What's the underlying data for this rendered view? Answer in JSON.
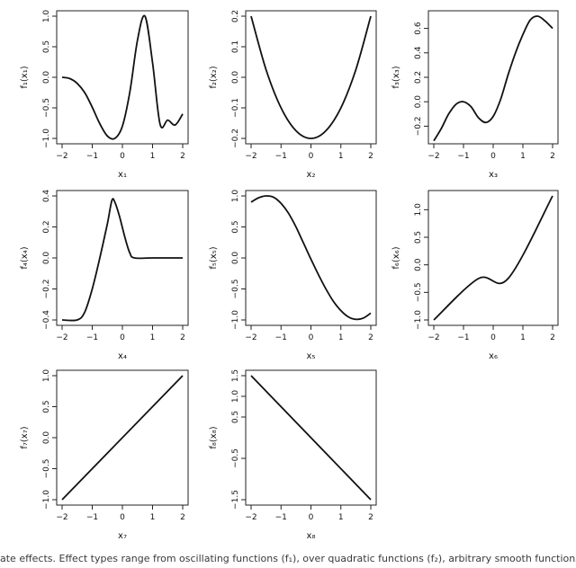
{
  "caption": "ate effects. Effect types range from oscillating functions (f₁), over quadratic functions (f₂), arbitrary smooth functions",
  "chart_data": [
    {
      "type": "line",
      "xlabel": "x₁",
      "ylabel": "f₁(x₁)",
      "xlim": [
        -2,
        2
      ],
      "ylim": [
        -1,
        1
      ],
      "xticks": [
        -2,
        -1,
        0,
        1,
        2
      ],
      "yticks": [
        -1.0,
        -0.5,
        0.0,
        0.5,
        1.0
      ],
      "xticklabels": [
        "−2",
        "−1",
        "0",
        "1",
        "2"
      ],
      "yticklabels": [
        "−1.0",
        "−0.5",
        "0.0",
        "0.5",
        "1.0"
      ],
      "series": [
        {
          "x": [
            -2,
            -1.75,
            -1.5,
            -1.25,
            -1,
            -0.75,
            -0.5,
            -0.25,
            0,
            0.25,
            0.5,
            0.75,
            1,
            1.25,
            1.5,
            1.75,
            2
          ],
          "y": [
            0.0,
            -0.02,
            -0.1,
            -0.25,
            -0.49,
            -0.76,
            -0.96,
            -1.0,
            -0.8,
            -0.23,
            0.61,
            1.0,
            0.24,
            -0.77,
            -0.7,
            -0.78,
            -0.6
          ]
        }
      ]
    },
    {
      "type": "line",
      "xlabel": "x₂",
      "ylabel": "f₂(x₂)",
      "xlim": [
        -2,
        2
      ],
      "ylim": [
        -0.2,
        0.2
      ],
      "xticks": [
        -2,
        -1,
        0,
        1,
        2
      ],
      "yticks": [
        -0.2,
        -0.1,
        0.0,
        0.1,
        0.2
      ],
      "xticklabels": [
        "−2",
        "−1",
        "0",
        "1",
        "2"
      ],
      "yticklabels": [
        "−0.2",
        "−0.1",
        "0.0",
        "0.1",
        "0.2"
      ],
      "series": [
        {
          "x": [
            -2,
            -1.5,
            -1,
            -0.5,
            0,
            0.5,
            1,
            1.5,
            2
          ],
          "y": [
            0.2,
            0.025,
            -0.1,
            -0.175,
            -0.2,
            -0.175,
            -0.1,
            0.025,
            0.2
          ]
        }
      ]
    },
    {
      "type": "line",
      "xlabel": "x₃",
      "ylabel": "f₃(x₃)",
      "xlim": [
        -2,
        2
      ],
      "ylim": [
        -0.3,
        0.7
      ],
      "xticks": [
        -2,
        -1,
        0,
        1,
        2
      ],
      "yticks": [
        -0.2,
        0.0,
        0.2,
        0.4,
        0.6
      ],
      "xticklabels": [
        "−2",
        "−1",
        "0",
        "1",
        "2"
      ],
      "yticklabels": [
        "−0.2",
        "0.0",
        "0.2",
        "0.4",
        "0.6"
      ],
      "series": [
        {
          "x": [
            -2,
            -1.75,
            -1.5,
            -1.25,
            -1,
            -0.75,
            -0.5,
            -0.25,
            0,
            0.25,
            0.5,
            0.75,
            1,
            1.25,
            1.5,
            1.75,
            2
          ],
          "y": [
            -0.32,
            -0.22,
            -0.1,
            -0.02,
            0.0,
            -0.04,
            -0.13,
            -0.17,
            -0.12,
            0.02,
            0.22,
            0.4,
            0.55,
            0.67,
            0.7,
            0.66,
            0.6
          ]
        }
      ]
    },
    {
      "type": "line",
      "xlabel": "x₄",
      "ylabel": "f₄(x₄)",
      "xlim": [
        -2,
        2
      ],
      "ylim": [
        -0.4,
        0.4
      ],
      "xticks": [
        -2,
        -1,
        0,
        1,
        2
      ],
      "yticks": [
        -0.4,
        -0.2,
        0.0,
        0.2,
        0.4
      ],
      "xticklabels": [
        "−2",
        "−1",
        "0",
        "1",
        "2"
      ],
      "yticklabels": [
        "−0.4",
        "−0.2",
        "0.0",
        "0.2",
        "0.4"
      ],
      "series": [
        {
          "x": [
            -2,
            -1.5,
            -1.25,
            -1,
            -0.75,
            -0.5,
            -0.35,
            -0.25,
            -0.1,
            0.1,
            0.25,
            0.4,
            1,
            2
          ],
          "y": [
            -0.4,
            -0.4,
            -0.35,
            -0.2,
            0.0,
            0.22,
            0.37,
            0.36,
            0.27,
            0.12,
            0.03,
            0.0,
            0.0,
            0.0
          ]
        }
      ]
    },
    {
      "type": "line",
      "xlabel": "x₅",
      "ylabel": "f₅(x₅)",
      "xlim": [
        -2,
        2
      ],
      "ylim": [
        -1,
        1
      ],
      "xticks": [
        -2,
        -1,
        0,
        1,
        2
      ],
      "yticks": [
        -1.0,
        -0.5,
        0.0,
        0.5,
        1.0
      ],
      "xticklabels": [
        "−2",
        "−1",
        "0",
        "1",
        "2"
      ],
      "yticklabels": [
        "−1.0",
        "−0.5",
        "0.0",
        "0.5",
        "1.0"
      ],
      "series": [
        {
          "x": [
            -2,
            -1.75,
            -1.5,
            -1.25,
            -1,
            -0.75,
            -0.5,
            -0.25,
            0,
            0.25,
            0.5,
            0.75,
            1,
            1.25,
            1.5,
            1.75,
            2
          ],
          "y": [
            0.9,
            0.97,
            1.0,
            0.98,
            0.88,
            0.72,
            0.5,
            0.24,
            -0.02,
            -0.27,
            -0.5,
            -0.7,
            -0.85,
            -0.95,
            -0.99,
            -0.97,
            -0.89
          ]
        }
      ]
    },
    {
      "type": "line",
      "xlabel": "x₆",
      "ylabel": "f₆(x₆)",
      "xlim": [
        -2,
        2
      ],
      "ylim": [
        -1,
        1.25
      ],
      "xticks": [
        -2,
        -1,
        0,
        1,
        2
      ],
      "yticks": [
        -1.0,
        -0.5,
        0.0,
        0.5,
        1.0
      ],
      "xticklabels": [
        "−2",
        "−1",
        "0",
        "1",
        "2"
      ],
      "yticklabels": [
        "−1.0",
        "−0.5",
        "0.0",
        "0.5",
        "1.0"
      ],
      "series": [
        {
          "x": [
            -2,
            -0.5,
            0.5,
            2
          ],
          "y": [
            -1.0,
            -0.25,
            -0.25,
            1.25
          ]
        }
      ]
    },
    {
      "type": "line",
      "xlabel": "x₇",
      "ylabel": "f₇(x₇)",
      "xlim": [
        -2,
        2
      ],
      "ylim": [
        -1,
        1
      ],
      "xticks": [
        -2,
        -1,
        0,
        1,
        2
      ],
      "yticks": [
        -1.0,
        -0.5,
        0.0,
        0.5,
        1.0
      ],
      "xticklabels": [
        "−2",
        "−1",
        "0",
        "1",
        "2"
      ],
      "yticklabels": [
        "−1.0",
        "−0.5",
        "0.0",
        "0.5",
        "1.0"
      ],
      "series": [
        {
          "x": [
            -2,
            2
          ],
          "y": [
            -1.0,
            1.0
          ]
        }
      ]
    },
    {
      "type": "line",
      "xlabel": "x₈",
      "ylabel": "f₈(x₈)",
      "xlim": [
        -2,
        2
      ],
      "ylim": [
        -1.5,
        1.5
      ],
      "xticks": [
        -2,
        -1,
        0,
        1,
        2
      ],
      "yticks": [
        -1.5,
        -0.5,
        0.5,
        1.0,
        1.5
      ],
      "xticklabels": [
        "−2",
        "−1",
        "0",
        "1",
        "2"
      ],
      "yticklabels": [
        "−1.5",
        "−0.5",
        "0.5",
        "1.0",
        "1.5"
      ],
      "series": [
        {
          "x": [
            -2,
            2
          ],
          "y": [
            1.5,
            -1.5
          ]
        }
      ]
    }
  ]
}
